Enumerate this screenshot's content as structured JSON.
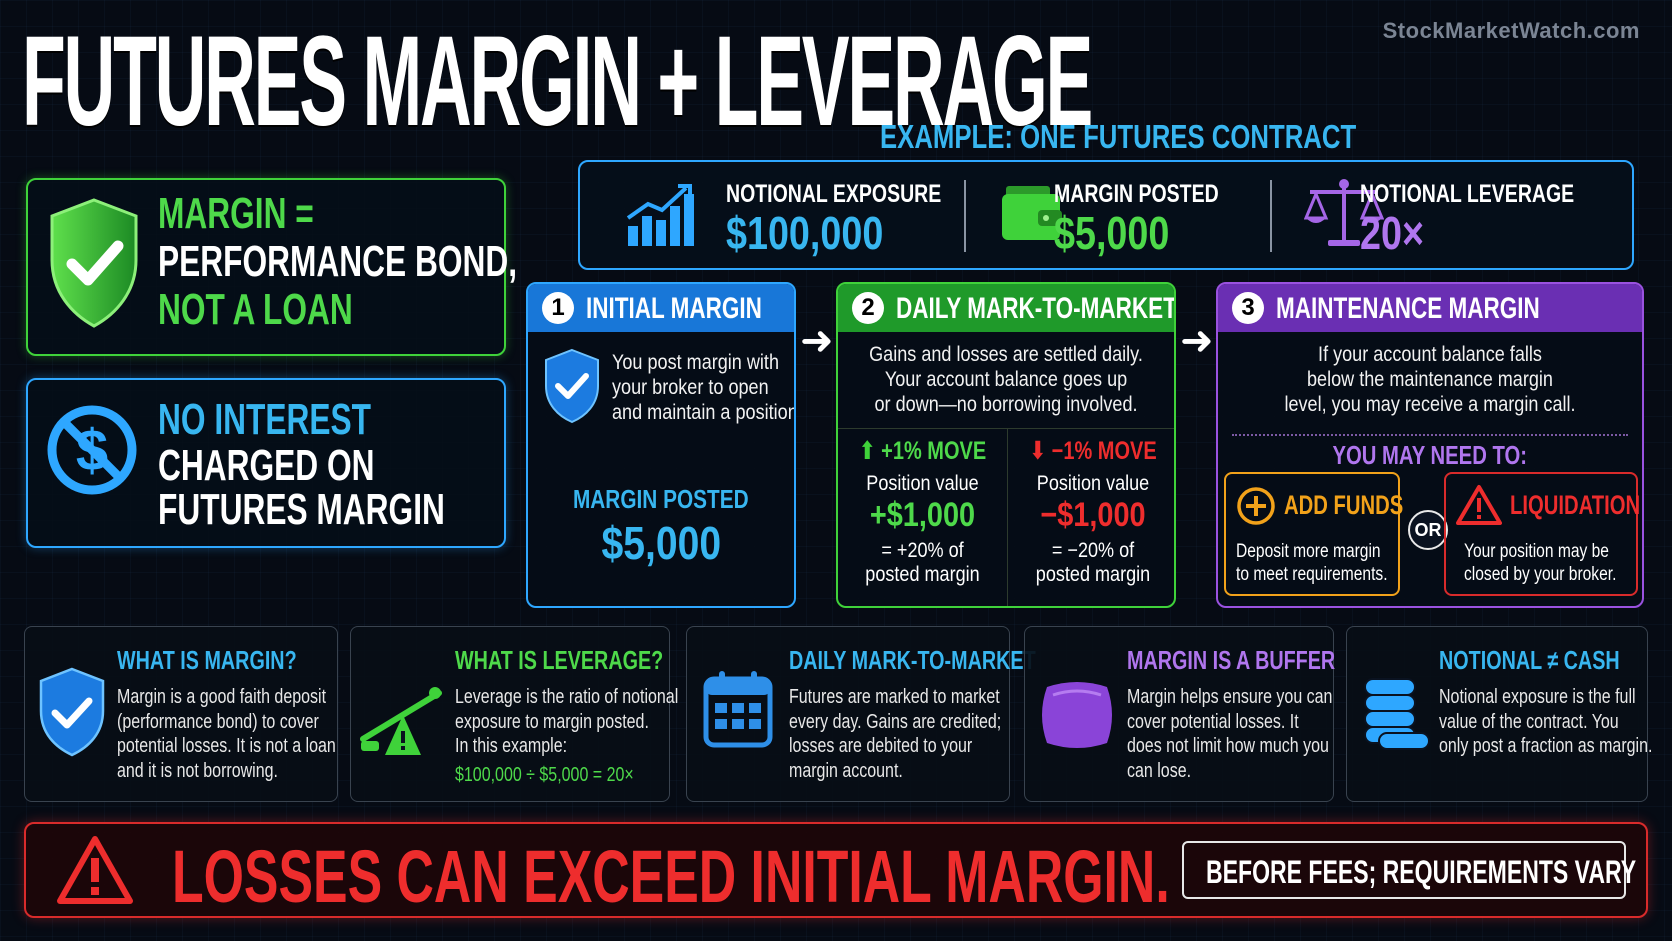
{
  "header": {
    "title": "FUTURES MARGIN + LEVERAGE",
    "watermark": "StockMarketWatch.com",
    "example_title": "EXAMPLE: ONE FUTURES CONTRACT"
  },
  "left_panels": {
    "margin": {
      "line1": "MARGIN =",
      "line2": "PERFORMANCE BOND,",
      "line3": "NOT A LOAN"
    },
    "interest": {
      "line1": "NO INTEREST",
      "line2": "CHARGED ON",
      "line3": "FUTURES MARGIN"
    }
  },
  "stats": {
    "notional": {
      "label": "NOTIONAL EXPOSURE",
      "value": "$100,000",
      "icon": "bar-chart-icon"
    },
    "margin": {
      "label": "MARGIN POSTED",
      "value": "$5,000",
      "icon": "wallet-icon"
    },
    "leverage": {
      "label": "NOTIONAL LEVERAGE",
      "value": "20×",
      "icon": "scales-icon"
    }
  },
  "steps": {
    "initial": {
      "num": "1",
      "title": "INITIAL MARGIN",
      "text_lines": [
        "You post margin with",
        "your broker to open",
        "and maintain a position."
      ],
      "sub_label": "MARGIN POSTED",
      "sub_value": "$5,000"
    },
    "mtm": {
      "num": "2",
      "title": "DAILY MARK-TO-MARKET",
      "text_lines": [
        "Gains and losses are settled daily.",
        "Your account balance goes up",
        "or down—no borrowing involved."
      ],
      "up": {
        "title": "+1% MOVE",
        "label": "Position value",
        "value": "+$1,000",
        "pct": "= +20% of",
        "pct2": "posted margin"
      },
      "down": {
        "title": "−1% MOVE",
        "label": "Position value",
        "value": "−$1,000",
        "pct": "= −20% of",
        "pct2": "posted margin"
      }
    },
    "maintenance": {
      "num": "3",
      "title": "MAINTENANCE MARGIN",
      "text_lines": [
        "If your account balance falls",
        "below the maintenance margin",
        "level, you may receive a margin call."
      ],
      "need_label": "YOU MAY NEED TO:",
      "add": {
        "title": "ADD FUNDS",
        "text1": "Deposit more margin",
        "text2": "to meet requirements."
      },
      "or_label": "OR",
      "liq": {
        "title": "LIQUIDATION",
        "text1": "Your position may be",
        "text2": "closed by your broker."
      }
    }
  },
  "cards": [
    {
      "title": "WHAT IS MARGIN?",
      "color": "#38b6f0",
      "lines": [
        "Margin is a good faith deposit",
        "(performance bond) to cover",
        "potential losses. It is not a loan",
        "and it is not borrowing."
      ],
      "icon": "shield-check-icon"
    },
    {
      "title": "WHAT IS LEVERAGE?",
      "color": "#4ed94a",
      "lines": [
        "Leverage is the ratio of notional",
        "exposure to margin posted.",
        "In this example:"
      ],
      "formula": "$100,000 ÷ $5,000 = 20×",
      "icon": "seesaw-icon"
    },
    {
      "title": "DAILY MARK-TO-MARKET",
      "color": "#38b6f0",
      "lines": [
        "Futures are marked to market",
        "every day. Gains are credited;",
        "losses are debited to your",
        "margin account."
      ],
      "icon": "calendar-icon"
    },
    {
      "title": "MARGIN IS A BUFFER",
      "color": "#b076ee",
      "lines": [
        "Margin helps ensure you can",
        "cover potential losses. It",
        "does not limit how much you",
        "can lose."
      ],
      "icon": "cushion-icon"
    },
    {
      "title": "NOTIONAL ≠ CASH",
      "color": "#38b6f0",
      "lines": [
        "Notional exposure is the full",
        "value of the contract. You",
        "only post a fraction as margin."
      ],
      "icon": "coins-icon"
    }
  ],
  "warning": {
    "text": "LOSSES CAN EXCEED INITIAL MARGIN.",
    "note": "BEFORE FEES; REQUIREMENTS VARY"
  },
  "colors": {
    "green": "#3fd23a",
    "blue": "#2ea7ff",
    "purple": "#9a52e0",
    "red": "#ee2d2d",
    "orange": "#f2a21a"
  }
}
